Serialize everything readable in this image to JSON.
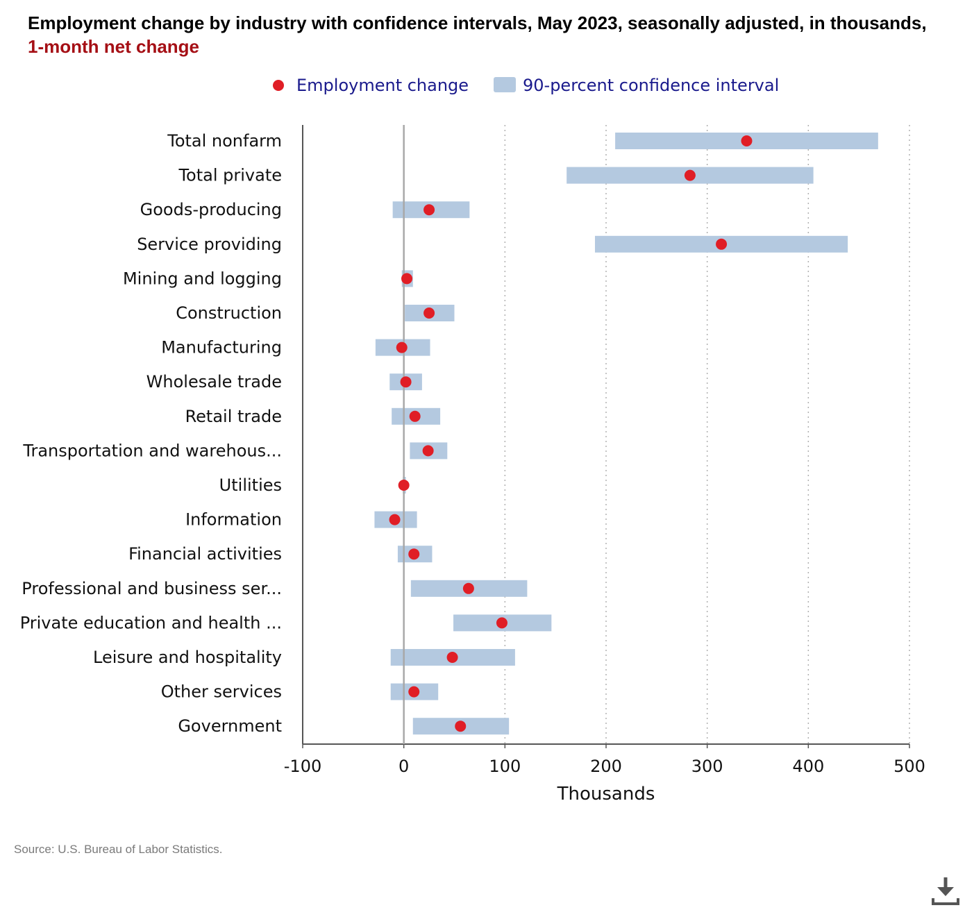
{
  "title": {
    "main": "Employment change by industry with confidence intervals, May 2023, seasonally adjusted, in thousands,",
    "highlight": "1-month net change"
  },
  "colors": {
    "point": "#e01e26",
    "interval": "#b4c9e0",
    "legend_text": "#1a1a8c",
    "highlight": "#a50f15"
  },
  "source": "Source: U.S. Bureau of Labor Statistics.",
  "download_icon": "download-icon",
  "chart_data": {
    "type": "scatter",
    "orientation": "horizontal",
    "legend": {
      "position": "top-center",
      "items": [
        {
          "name": "Employment change",
          "marker": "circle"
        },
        {
          "name": "90-percent confidence interval",
          "marker": "bar"
        }
      ]
    },
    "xlabel": "Thousands",
    "xlim": [
      -100,
      500
    ],
    "xticks": [
      -100,
      0,
      100,
      200,
      300,
      400,
      500
    ],
    "grid": "vertical dotted",
    "categories": [
      "Total nonfarm",
      "Total private",
      "Goods-producing",
      "Service providing",
      "Mining and logging",
      "Construction",
      "Manufacturing",
      "Wholesale trade",
      "Retail trade",
      "Transportation and warehous...",
      "Utilities",
      "Information",
      "Financial activities",
      "Professional and business ser...",
      "Private education and health ...",
      "Leisure and hospitality",
      "Other services",
      "Government"
    ],
    "series": [
      {
        "name": "Employment change",
        "values": [
          339,
          283,
          25,
          314,
          3,
          25,
          -2,
          2,
          11,
          24,
          0,
          -9,
          10,
          64,
          97,
          48,
          10,
          56
        ]
      },
      {
        "name": "90-percent confidence interval",
        "lower": [
          209,
          161,
          -11,
          189,
          -2,
          1,
          -28,
          -14,
          -12,
          6,
          -1,
          -29,
          -6,
          7,
          49,
          -13,
          -13,
          9
        ],
        "upper": [
          469,
          405,
          65,
          439,
          9,
          50,
          26,
          18,
          36,
          43,
          2,
          13,
          28,
          122,
          146,
          110,
          34,
          104
        ]
      }
    ]
  }
}
